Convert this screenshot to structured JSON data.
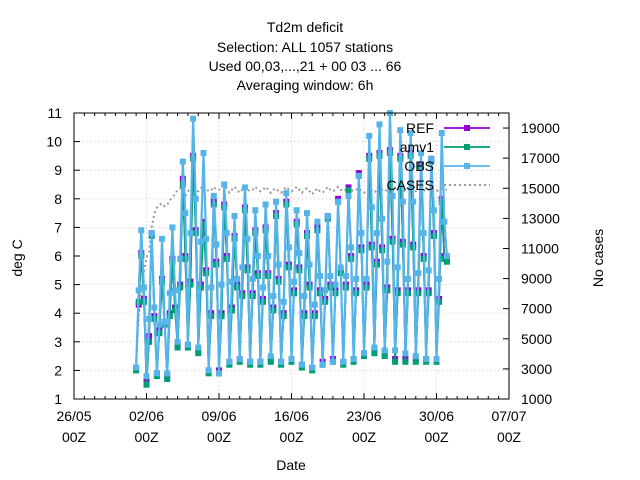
{
  "chart_data": {
    "type": "line",
    "title_lines": [
      "Td2m deficit",
      "Selection: ALL   1057 stations",
      "Used  00,03,...,21  + 00 03 ... 66",
      "Averaging window:  6h"
    ],
    "xlabel": "Date",
    "ylabel": "deg C",
    "y2label": "No cases",
    "x_range": [
      "2021-05-26 00:00",
      "2021-07-07 00:00"
    ],
    "y_range": [
      1,
      11
    ],
    "y2_range": [
      1000,
      20000
    ],
    "x_ticks": [
      {
        "l1": "26/05",
        "l2": "00Z"
      },
      {
        "l1": "02/06",
        "l2": "00Z"
      },
      {
        "l1": "09/06",
        "l2": "00Z"
      },
      {
        "l1": "16/06",
        "l2": "00Z"
      },
      {
        "l1": "23/06",
        "l2": "00Z"
      },
      {
        "l1": "30/06",
        "l2": "00Z"
      },
      {
        "l1": "07/07",
        "l2": "00Z"
      }
    ],
    "y_ticks": [
      "1",
      "2",
      "3",
      "4",
      "5",
      "6",
      "7",
      "8",
      "9",
      "10",
      "11"
    ],
    "y2_ticks": [
      "1000",
      "3000",
      "5000",
      "7000",
      "9000",
      "11000",
      "13000",
      "15000",
      "17000",
      "19000"
    ],
    "legend": [
      {
        "label": "REF",
        "color": "#9400d3",
        "marker": "square"
      },
      {
        "label": "amv1",
        "color": "#009e73",
        "marker": "square"
      },
      {
        "label": "OBS",
        "color": "#56b4e9",
        "marker": "square"
      },
      {
        "label": "CASES",
        "color": "#999999",
        "marker": "none",
        "dashed": true
      }
    ],
    "legend_position": "top-right",
    "grid": true,
    "series_note": "Series sampled every 6 h from 2021-06-01 00Z to 2021-07-01 00Z; values in deg C (CASES on right axis)",
    "start": "2021-06-01 00:00",
    "step_hours": 6,
    "series": [
      {
        "name": "REF",
        "color": "#9400d3",
        "axis": "y",
        "values": [
          2.1,
          4.3,
          6.1,
          4.5,
          1.6,
          3.2,
          6.8,
          3.9,
          1.9,
          3.4,
          5.2,
          3.7,
          1.8,
          4.0,
          5.9,
          4.2,
          2.9,
          5.0,
          8.7,
          6.0,
          2.9,
          5.1,
          9.5,
          6.9,
          2.7,
          5.0,
          7.2,
          5.5,
          2.0,
          4.0,
          7.9,
          5.8,
          2.0,
          4.0,
          7.8,
          6.0,
          2.3,
          4.2,
          6.7,
          5.0,
          2.4,
          4.7,
          7.7,
          5.6,
          2.3,
          4.7,
          6.9,
          5.4,
          2.3,
          4.5,
          7.0,
          5.4,
          2.4,
          4.2,
          7.5,
          5.2,
          2.3,
          4.0,
          7.9,
          5.7,
          2.4,
          4.8,
          7.2,
          5.6,
          2.2,
          4.0,
          6.8,
          5.0,
          2.1,
          4.0,
          7.0,
          4.8,
          2.3,
          4.5,
          7.4,
          5.0,
          2.4,
          4.8,
          8.0,
          5.5,
          2.3,
          5.0,
          8.4,
          6.0,
          2.4,
          4.8,
          8.9,
          6.3,
          2.6,
          5.0,
          9.5,
          6.4,
          2.7,
          5.8,
          9.6,
          6.3,
          2.6,
          4.9,
          9.7,
          6.6,
          2.4,
          4.8,
          9.5,
          6.5,
          2.4,
          4.8,
          9.6,
          6.4,
          2.4,
          4.8,
          9.2,
          6.0,
          2.4,
          4.8,
          9.4,
          6.8,
          2.4,
          4.5,
          8.0,
          6.0,
          5.9
        ]
      },
      {
        "name": "amv1",
        "color": "#009e73",
        "axis": "y",
        "values": [
          2.0,
          4.4,
          6.0,
          4.4,
          1.5,
          3.0,
          6.7,
          3.8,
          1.8,
          3.3,
          5.1,
          3.6,
          1.7,
          3.9,
          5.8,
          4.1,
          2.8,
          4.9,
          8.5,
          5.9,
          2.8,
          5.0,
          9.4,
          6.8,
          2.6,
          4.9,
          7.1,
          5.4,
          1.9,
          3.9,
          7.8,
          5.7,
          1.9,
          3.9,
          7.7,
          5.9,
          2.2,
          4.1,
          6.6,
          4.9,
          2.3,
          4.6,
          7.6,
          5.5,
          2.2,
          4.6,
          6.8,
          5.3,
          2.2,
          4.4,
          6.9,
          5.3,
          2.3,
          4.1,
          7.4,
          5.1,
          2.2,
          3.9,
          7.8,
          5.6,
          2.3,
          4.7,
          7.1,
          5.5,
          2.1,
          3.9,
          6.7,
          4.9,
          2.0,
          3.9,
          6.9,
          4.7,
          2.2,
          4.4,
          7.3,
          4.9,
          2.3,
          4.7,
          7.9,
          5.4,
          2.2,
          4.9,
          8.3,
          5.9,
          2.3,
          4.7,
          8.8,
          6.2,
          2.5,
          4.9,
          9.4,
          6.3,
          2.6,
          5.7,
          9.5,
          6.2,
          2.5,
          4.8,
          9.6,
          6.5,
          2.3,
          4.7,
          9.4,
          6.4,
          2.3,
          4.7,
          9.5,
          6.3,
          2.3,
          4.7,
          9.1,
          5.9,
          2.3,
          4.7,
          9.3,
          6.7,
          2.3,
          4.4,
          7.9,
          5.9,
          5.8
        ]
      },
      {
        "name": "OBS",
        "color": "#56b4e9",
        "axis": "y",
        "values": [
          2.1,
          4.8,
          6.9,
          4.9,
          1.8,
          3.8,
          6.8,
          4.2,
          1.9,
          3.6,
          6.6,
          3.7,
          1.9,
          4.7,
          7.0,
          4.8,
          3.0,
          5.9,
          9.3,
          7.5,
          2.9,
          6.8,
          10.8,
          8.0,
          2.8,
          6.5,
          9.6,
          6.6,
          2.0,
          4.9,
          8.1,
          6.4,
          1.9,
          5.0,
          8.5,
          6.8,
          2.3,
          5.1,
          7.4,
          5.2,
          2.4,
          5.6,
          8.4,
          6.6,
          2.3,
          5.2,
          7.6,
          6.0,
          2.3,
          4.9,
          7.8,
          6.0,
          2.5,
          4.6,
          7.9,
          5.7,
          2.3,
          4.4,
          8.2,
          6.3,
          2.4,
          5.1,
          7.6,
          6.1,
          2.2,
          4.6,
          7.5,
          5.7,
          2.1,
          4.3,
          7.2,
          5.3,
          2.2,
          4.8,
          7.4,
          5.3,
          2.3,
          5.0,
          7.9,
          5.6,
          2.3,
          5.3,
          8.1,
          6.3,
          2.4,
          5.2,
          8.8,
          6.8,
          2.6,
          5.2,
          10.2,
          7.7,
          2.8,
          6.8,
          10.6,
          7.3,
          2.7,
          5.8,
          11.0,
          8.1,
          2.7,
          5.6,
          10.4,
          7.9,
          2.6,
          5.2,
          10.3,
          7.9,
          2.5,
          5.4,
          9.6,
          6.8,
          2.4,
          5.5,
          9.4,
          7.6,
          2.4,
          5.2,
          10.3,
          7.2,
          6.0
        ]
      },
      {
        "name": "CASES",
        "color": "#999999",
        "axis": "y2",
        "values": [
          3500,
          6500,
          8300,
          9400,
          10400,
          10800,
          12400,
          13300,
          13700,
          13900,
          14000,
          13800,
          13900,
          14200,
          14400,
          14600,
          14900,
          15000,
          14800,
          14500,
          14800,
          15000,
          15200,
          14900,
          14800,
          15000,
          15200,
          15000,
          14800,
          14900,
          15100,
          14900,
          14900,
          15000,
          15200,
          15000,
          14700,
          14900,
          15100,
          14900,
          14700,
          14900,
          15100,
          14900,
          14800,
          14900,
          15100,
          14900,
          14800,
          14900,
          15100,
          14900,
          14700,
          14900,
          15000,
          14800,
          14700,
          14900,
          15100,
          14900,
          14800,
          14900,
          15100,
          14900,
          14700,
          14900,
          15000,
          14800,
          14600,
          14800,
          15000,
          14800,
          14700,
          14900,
          15100,
          14900,
          14800,
          14900,
          15100,
          14900,
          14800,
          14900,
          15100,
          14900,
          14800,
          14900,
          15000,
          14800,
          14700,
          14800,
          15000,
          14800,
          14700,
          14900,
          15100,
          14900,
          14800,
          14900,
          15100,
          14900,
          14800,
          14900,
          15100,
          14900,
          14800,
          14900,
          15100,
          14900,
          14800,
          14900,
          15000,
          14900,
          14800,
          14900,
          15000,
          14900,
          14800,
          14900,
          15000,
          14900,
          14900
        ]
      }
    ]
  }
}
